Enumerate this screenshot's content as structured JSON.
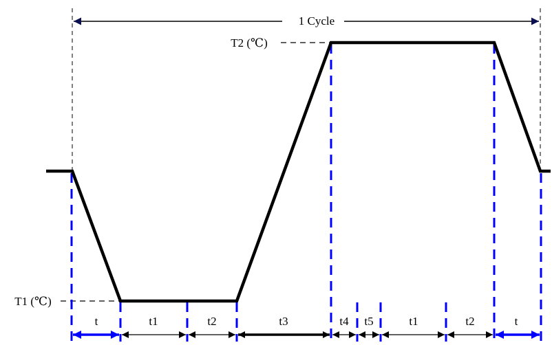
{
  "cycle_label": "1 Cycle",
  "t2_label": "T2 (℃)",
  "t1_label": "T1 (℃)",
  "segments": {
    "t_start": "t",
    "t1_a": "t1",
    "t2_a": "t2",
    "t3": "t3",
    "t4": "t4",
    "t5": "t5",
    "t1_b": "t1",
    "t2_b": "t2",
    "t_end": "t"
  },
  "colors": {
    "profile": "#000000",
    "boundary_dashed": "#0000ff",
    "helper_dashed": "#000000",
    "arrow_blue": "#0000ff",
    "arrow_black": "#000000",
    "background": "#ffffff"
  }
}
